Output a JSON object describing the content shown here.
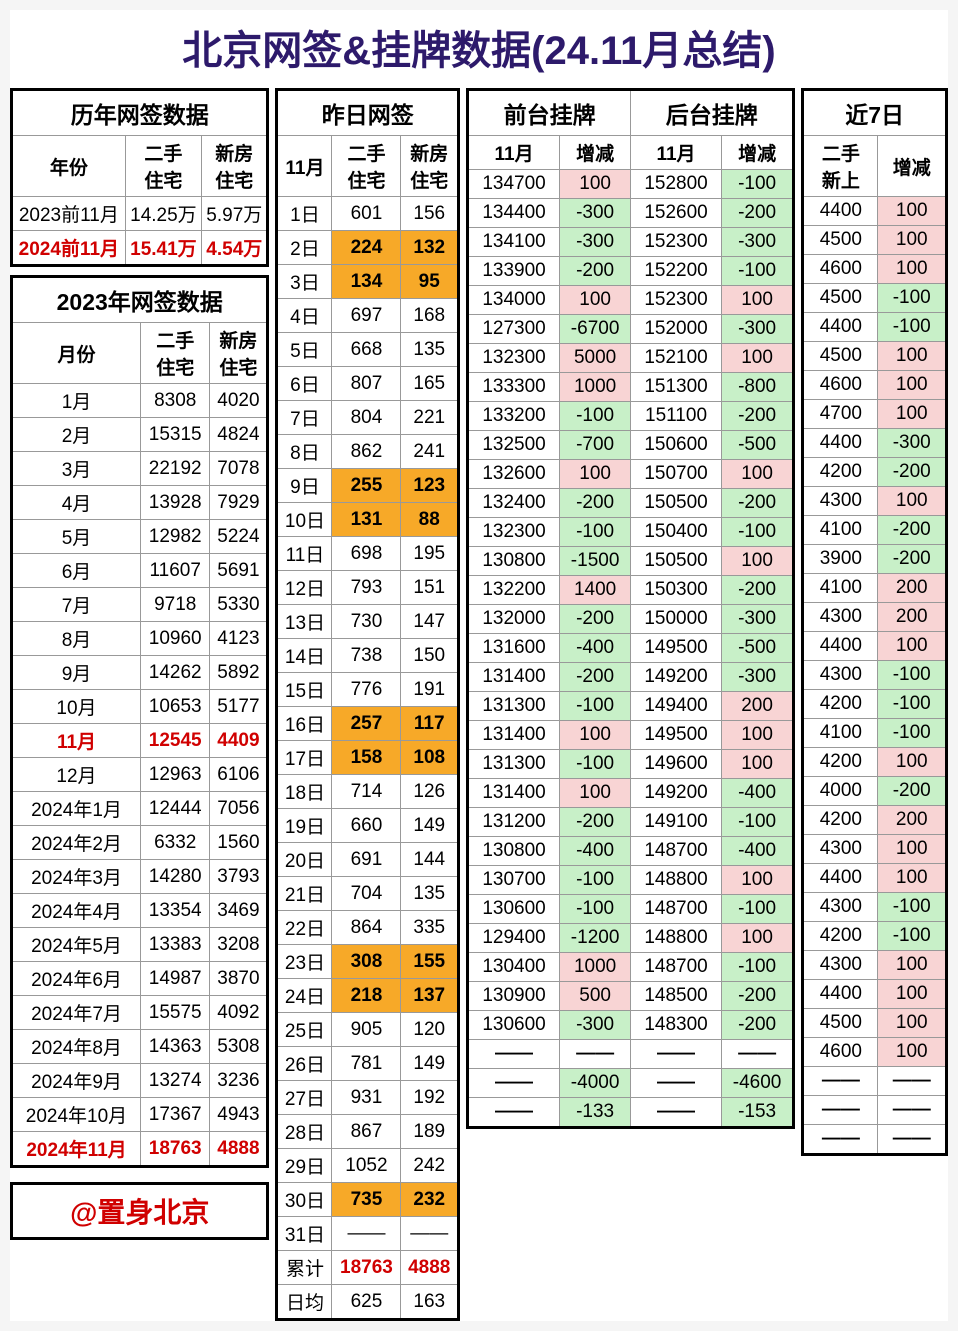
{
  "title": "北京网签&挂牌数据(24.11月总结)",
  "footer": "@置身北京",
  "colors": {
    "title": "#2d1a6b",
    "red": "#d00000",
    "orange": "#f7a928",
    "green": "#c8f0c8",
    "pink": "#f8d4d4"
  },
  "yearly": {
    "title": "历年网签数据",
    "headers": [
      "年份",
      "二手\n住宅",
      "新房\n住宅"
    ],
    "rows": [
      {
        "y": "2023前11月",
        "a": "14.25万",
        "b": "5.97万",
        "red": false
      },
      {
        "y": "2024前11月",
        "a": "15.41万",
        "b": "4.54万",
        "red": true
      }
    ]
  },
  "monthly": {
    "title": "2023年网签数据",
    "headers": [
      "月份",
      "二手\n住宅",
      "新房\n住宅"
    ],
    "rows": [
      {
        "m": "1月",
        "a": "8308",
        "b": "4020"
      },
      {
        "m": "2月",
        "a": "15315",
        "b": "4824"
      },
      {
        "m": "3月",
        "a": "22192",
        "b": "7078"
      },
      {
        "m": "4月",
        "a": "13928",
        "b": "7929"
      },
      {
        "m": "5月",
        "a": "12982",
        "b": "5224"
      },
      {
        "m": "6月",
        "a": "11607",
        "b": "5691"
      },
      {
        "m": "7月",
        "a": "9718",
        "b": "5330"
      },
      {
        "m": "8月",
        "a": "10960",
        "b": "4123"
      },
      {
        "m": "9月",
        "a": "14262",
        "b": "5892"
      },
      {
        "m": "10月",
        "a": "10653",
        "b": "5177"
      },
      {
        "m": "11月",
        "a": "12545",
        "b": "4409",
        "red": true
      },
      {
        "m": "12月",
        "a": "12963",
        "b": "6106"
      },
      {
        "m": "2024年1月",
        "a": "12444",
        "b": "7056"
      },
      {
        "m": "2024年2月",
        "a": "6332",
        "b": "1560"
      },
      {
        "m": "2024年3月",
        "a": "14280",
        "b": "3793"
      },
      {
        "m": "2024年4月",
        "a": "13354",
        "b": "3469"
      },
      {
        "m": "2024年5月",
        "a": "13383",
        "b": "3208"
      },
      {
        "m": "2024年6月",
        "a": "14987",
        "b": "3870"
      },
      {
        "m": "2024年7月",
        "a": "15575",
        "b": "4092"
      },
      {
        "m": "2024年8月",
        "a": "14363",
        "b": "5308"
      },
      {
        "m": "2024年9月",
        "a": "13274",
        "b": "3236"
      },
      {
        "m": "2024年10月",
        "a": "17367",
        "b": "4943"
      },
      {
        "m": "2024年11月",
        "a": "18763",
        "b": "4888",
        "red": true
      }
    ]
  },
  "daily": {
    "title": "昨日网签",
    "headers": [
      "11月",
      "二手\n住宅",
      "新房\n住宅"
    ],
    "rows": [
      {
        "d": "1日",
        "a": "601",
        "b": "156"
      },
      {
        "d": "2日",
        "a": "224",
        "b": "132",
        "hl": true
      },
      {
        "d": "3日",
        "a": "134",
        "b": "95",
        "hl": true
      },
      {
        "d": "4日",
        "a": "697",
        "b": "168"
      },
      {
        "d": "5日",
        "a": "668",
        "b": "135"
      },
      {
        "d": "6日",
        "a": "807",
        "b": "165"
      },
      {
        "d": "7日",
        "a": "804",
        "b": "221"
      },
      {
        "d": "8日",
        "a": "862",
        "b": "241"
      },
      {
        "d": "9日",
        "a": "255",
        "b": "123",
        "hl": true
      },
      {
        "d": "10日",
        "a": "131",
        "b": "88",
        "hl": true
      },
      {
        "d": "11日",
        "a": "698",
        "b": "195"
      },
      {
        "d": "12日",
        "a": "793",
        "b": "151"
      },
      {
        "d": "13日",
        "a": "730",
        "b": "147"
      },
      {
        "d": "14日",
        "a": "738",
        "b": "150"
      },
      {
        "d": "15日",
        "a": "776",
        "b": "191"
      },
      {
        "d": "16日",
        "a": "257",
        "b": "117",
        "hl": true
      },
      {
        "d": "17日",
        "a": "158",
        "b": "108",
        "hl": true
      },
      {
        "d": "18日",
        "a": "714",
        "b": "126"
      },
      {
        "d": "19日",
        "a": "660",
        "b": "149"
      },
      {
        "d": "20日",
        "a": "691",
        "b": "144"
      },
      {
        "d": "21日",
        "a": "704",
        "b": "135"
      },
      {
        "d": "22日",
        "a": "864",
        "b": "335"
      },
      {
        "d": "23日",
        "a": "308",
        "b": "155",
        "hl": true
      },
      {
        "d": "24日",
        "a": "218",
        "b": "137",
        "hl": true
      },
      {
        "d": "25日",
        "a": "905",
        "b": "120"
      },
      {
        "d": "26日",
        "a": "781",
        "b": "149"
      },
      {
        "d": "27日",
        "a": "931",
        "b": "192"
      },
      {
        "d": "28日",
        "a": "867",
        "b": "189"
      },
      {
        "d": "29日",
        "a": "1052",
        "b": "242"
      },
      {
        "d": "30日",
        "a": "735",
        "b": "232",
        "hl": true
      },
      {
        "d": "31日",
        "a": "——",
        "b": "——"
      },
      {
        "d": "累计",
        "a": "18763",
        "b": "4888",
        "red": true
      },
      {
        "d": "日均",
        "a": "625",
        "b": "163"
      }
    ]
  },
  "listing": {
    "title1": "前台挂牌",
    "title2": "后台挂牌",
    "headers": [
      "11月",
      "增减",
      "11月",
      "增减"
    ],
    "rows": [
      {
        "a": "134700",
        "da": 100,
        "b": "152800",
        "db": -100
      },
      {
        "a": "134400",
        "da": -300,
        "b": "152600",
        "db": -200
      },
      {
        "a": "134100",
        "da": -300,
        "b": "152300",
        "db": -300
      },
      {
        "a": "133900",
        "da": -200,
        "b": "152200",
        "db": -100
      },
      {
        "a": "134000",
        "da": 100,
        "b": "152300",
        "db": 100
      },
      {
        "a": "127300",
        "da": -6700,
        "b": "152000",
        "db": -300
      },
      {
        "a": "132300",
        "da": 5000,
        "b": "152100",
        "db": 100
      },
      {
        "a": "133300",
        "da": 1000,
        "b": "151300",
        "db": -800
      },
      {
        "a": "133200",
        "da": -100,
        "b": "151100",
        "db": -200
      },
      {
        "a": "132500",
        "da": -700,
        "b": "150600",
        "db": -500
      },
      {
        "a": "132600",
        "da": 100,
        "b": "150700",
        "db": 100
      },
      {
        "a": "132400",
        "da": -200,
        "b": "150500",
        "db": -200
      },
      {
        "a": "132300",
        "da": -100,
        "b": "150400",
        "db": -100
      },
      {
        "a": "130800",
        "da": -1500,
        "b": "150500",
        "db": 100
      },
      {
        "a": "132200",
        "da": 1400,
        "b": "150300",
        "db": -200
      },
      {
        "a": "132000",
        "da": -200,
        "b": "150000",
        "db": -300
      },
      {
        "a": "131600",
        "da": -400,
        "b": "149500",
        "db": -500
      },
      {
        "a": "131400",
        "da": -200,
        "b": "149200",
        "db": -300
      },
      {
        "a": "131300",
        "da": -100,
        "b": "149400",
        "db": 200
      },
      {
        "a": "131400",
        "da": 100,
        "b": "149500",
        "db": 100
      },
      {
        "a": "131300",
        "da": -100,
        "b": "149600",
        "db": 100
      },
      {
        "a": "131400",
        "da": 100,
        "b": "149200",
        "db": -400
      },
      {
        "a": "131200",
        "da": -200,
        "b": "149100",
        "db": -100
      },
      {
        "a": "130800",
        "da": -400,
        "b": "148700",
        "db": -400
      },
      {
        "a": "130700",
        "da": -100,
        "b": "148800",
        "db": 100
      },
      {
        "a": "130600",
        "da": -100,
        "b": "148700",
        "db": -100
      },
      {
        "a": "129400",
        "da": -1200,
        "b": "148800",
        "db": 100
      },
      {
        "a": "130400",
        "da": 1000,
        "b": "148700",
        "db": -100
      },
      {
        "a": "130900",
        "da": 500,
        "b": "148500",
        "db": -200
      },
      {
        "a": "130600",
        "da": -300,
        "b": "148300",
        "db": -200
      },
      {
        "a": "——",
        "da": "——",
        "b": "——",
        "db": "——",
        "dash": true
      },
      {
        "a": "——",
        "da": -4000,
        "b": "——",
        "db": -4600
      },
      {
        "a": "——",
        "da": -133,
        "b": "——",
        "db": -153
      }
    ]
  },
  "last7": {
    "title": "近7日",
    "headers": [
      "二手\n新上",
      "增减"
    ],
    "rows": [
      {
        "a": "4400",
        "d": 100
      },
      {
        "a": "4500",
        "d": 100
      },
      {
        "a": "4600",
        "d": 100
      },
      {
        "a": "4500",
        "d": -100
      },
      {
        "a": "4400",
        "d": -100
      },
      {
        "a": "4500",
        "d": 100
      },
      {
        "a": "4600",
        "d": 100
      },
      {
        "a": "4700",
        "d": 100
      },
      {
        "a": "4400",
        "d": -300
      },
      {
        "a": "4200",
        "d": -200
      },
      {
        "a": "4300",
        "d": 100
      },
      {
        "a": "4100",
        "d": -200
      },
      {
        "a": "3900",
        "d": -200
      },
      {
        "a": "4100",
        "d": 200
      },
      {
        "a": "4300",
        "d": 200
      },
      {
        "a": "4400",
        "d": 100
      },
      {
        "a": "4300",
        "d": -100
      },
      {
        "a": "4200",
        "d": -100
      },
      {
        "a": "4100",
        "d": -100
      },
      {
        "a": "4200",
        "d": 100
      },
      {
        "a": "4000",
        "d": -200
      },
      {
        "a": "4200",
        "d": 200
      },
      {
        "a": "4300",
        "d": 100
      },
      {
        "a": "4400",
        "d": 100
      },
      {
        "a": "4300",
        "d": -100
      },
      {
        "a": "4200",
        "d": -100
      },
      {
        "a": "4300",
        "d": 100
      },
      {
        "a": "4400",
        "d": 100
      },
      {
        "a": "4500",
        "d": 100
      },
      {
        "a": "4600",
        "d": 100
      },
      {
        "a": "——",
        "d": "——",
        "dash": true
      },
      {
        "a": "——",
        "d": "——",
        "dash": true
      },
      {
        "a": "——",
        "d": "——",
        "dash": true
      }
    ]
  }
}
